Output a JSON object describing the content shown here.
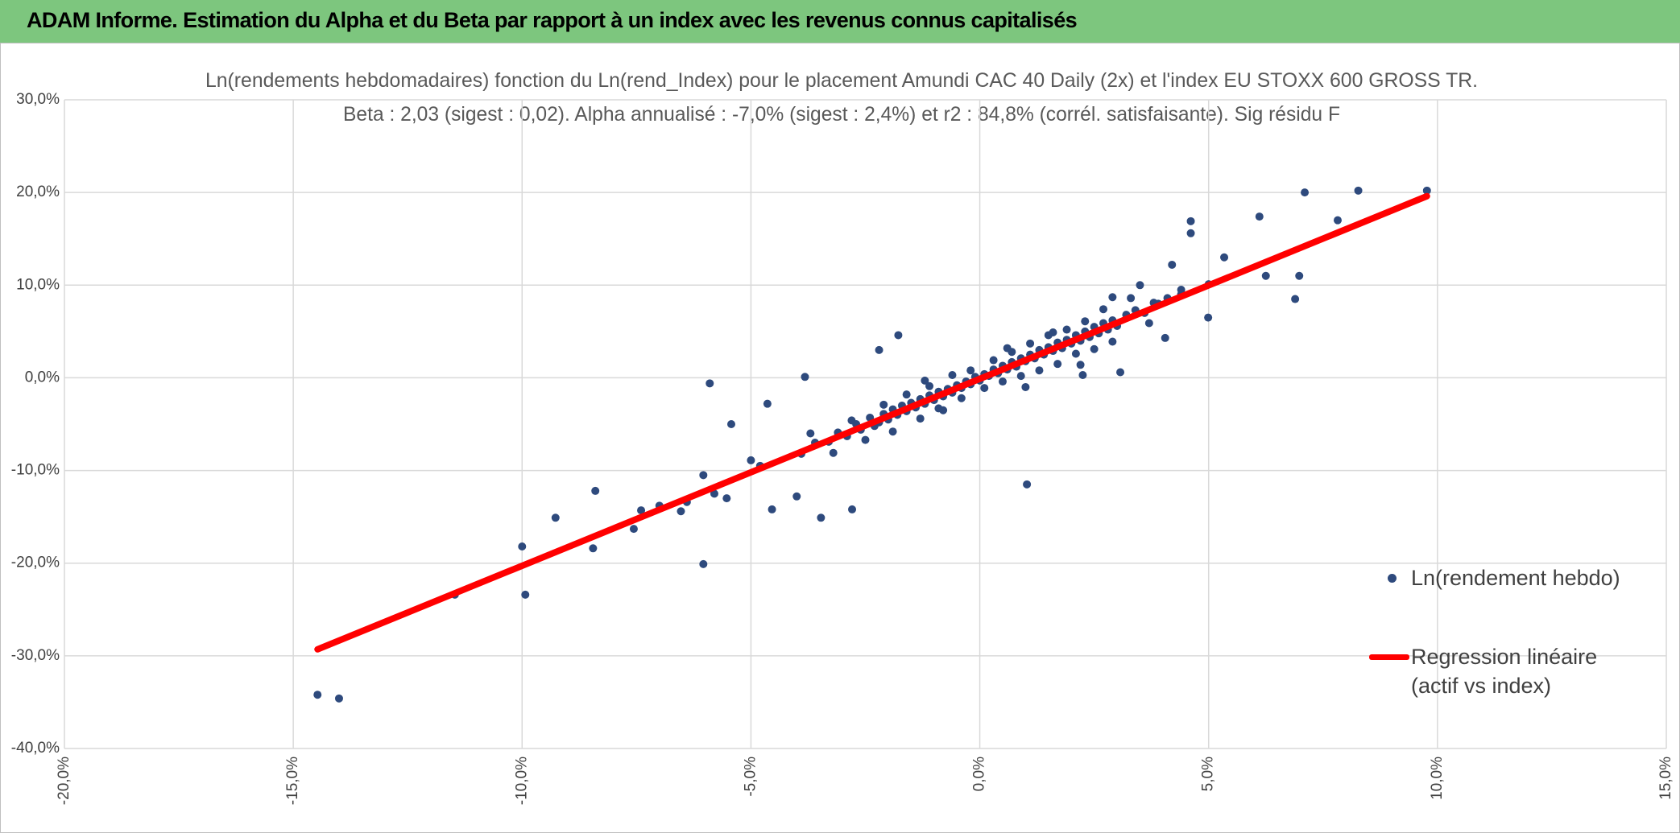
{
  "header": {
    "title": "ADAM Informe. Estimation du Alpha et du Beta par rapport à un index avec les revenus connus capitalisés"
  },
  "chart_data": {
    "type": "scatter",
    "title": "Ln(rendements hebdomadaires) fonction du Ln(rend_Index) pour le placement Amundi CAC 40 Daily (2x)  et l'index EU STOXX 600 GROSS TR.",
    "subtitle": "Beta : 2,03 (sigest : 0,02).  Alpha annualisé : -7,0% (sigest : 2,4%) et r2 : 84,8% (corrél. satisfaisante). Sig résidu F",
    "xlim": [
      -20,
      15
    ],
    "ylim": [
      -40,
      30
    ],
    "xticks": [
      {
        "value": -20,
        "label": "-20,0%"
      },
      {
        "value": -15,
        "label": "-15,0%"
      },
      {
        "value": -10,
        "label": "-10,0%"
      },
      {
        "value": -5,
        "label": "-5,0%"
      },
      {
        "value": 0,
        "label": "0,0%"
      },
      {
        "value": 5,
        "label": "5,0%"
      },
      {
        "value": 10,
        "label": "10,0%"
      },
      {
        "value": 15,
        "label": "15,0%"
      }
    ],
    "yticks": [
      {
        "value": -40,
        "label": "-40,0%"
      },
      {
        "value": -30,
        "label": "-30,0%"
      },
      {
        "value": -20,
        "label": "-20,0%"
      },
      {
        "value": -10,
        "label": "-10,0%"
      },
      {
        "value": 0,
        "label": "0,0%"
      },
      {
        "value": 10,
        "label": "10,0%"
      },
      {
        "value": 20,
        "label": "20,0%"
      },
      {
        "value": 30,
        "label": "30,0%"
      }
    ],
    "grid": true,
    "legend": "right",
    "series": [
      {
        "name": "Ln(rendement hebdo)",
        "type": "scatter",
        "color": "#2e4a7d",
        "x": [
          -14.47,
          -14.0,
          -11.47,
          -10.0,
          -9.93,
          -9.27,
          -8.45,
          -8.4,
          -7.56,
          -7.4,
          -6.53,
          -6.04,
          -6.04,
          -5.9,
          -5.43,
          -5.53,
          -5.0,
          -4.64,
          -4.54,
          -4.0,
          -3.82,
          -3.47,
          -2.79,
          -1.78,
          -2.2,
          1.03,
          2.25,
          3.07,
          7.1,
          8.27,
          9.77,
          7.82,
          6.11,
          4.61,
          4.61,
          6.89,
          6.98,
          6.25,
          5.34,
          4.99,
          4.05,
          3.5,
          4.2,
          3.9,
          5.0,
          2.9,
          4.4,
          -4.8,
          -6.4,
          -5.8,
          -7.0,
          -3.9,
          -3.6,
          -3.3,
          -3.1,
          -2.9,
          -2.7,
          -2.6,
          -2.4,
          -2.3,
          -2.2,
          -2.1,
          -2.0,
          -1.9,
          -1.8,
          -1.7,
          -1.6,
          -1.5,
          -1.4,
          -1.3,
          -1.2,
          -1.1,
          -1.0,
          -0.9,
          -0.8,
          -0.7,
          -0.6,
          -0.5,
          -0.4,
          -0.3,
          -0.2,
          -0.1,
          0.0,
          0.1,
          0.2,
          0.3,
          0.4,
          0.5,
          0.6,
          0.7,
          0.8,
          0.9,
          1.0,
          1.1,
          1.2,
          1.3,
          1.4,
          1.5,
          1.6,
          1.7,
          1.8,
          1.9,
          2.0,
          2.1,
          2.2,
          2.3,
          2.4,
          2.5,
          2.6,
          2.7,
          2.8,
          2.9,
          3.0,
          3.2,
          3.4,
          3.6,
          3.8,
          4.1,
          4.4,
          -3.7,
          -3.2,
          -2.8,
          -2.5,
          -2.1,
          -1.9,
          -1.6,
          -1.3,
          -1.1,
          -0.9,
          -0.6,
          -0.4,
          -0.2,
          0.1,
          0.3,
          0.5,
          0.7,
          0.9,
          1.1,
          1.3,
          1.5,
          1.7,
          1.9,
          2.1,
          2.3,
          2.5,
          2.7,
          2.9,
          3.3,
          3.7,
          -1.2,
          -0.8,
          0.6,
          1.0,
          1.6,
          2.2
        ],
        "values": [
          -34.2,
          -34.6,
          -23.4,
          -18.2,
          -23.4,
          -15.1,
          -18.4,
          -12.2,
          -16.3,
          -14.3,
          -14.4,
          -10.5,
          -20.1,
          -0.6,
          -5.0,
          -13.0,
          -8.9,
          -2.8,
          -14.2,
          -12.8,
          0.1,
          -15.1,
          -14.2,
          4.6,
          3.0,
          -11.5,
          0.3,
          0.6,
          20.0,
          20.2,
          20.2,
          17.0,
          17.4,
          16.9,
          15.6,
          8.5,
          11.0,
          11.0,
          13.0,
          6.5,
          4.3,
          10.0,
          12.2,
          8.0,
          10.1,
          8.7,
          9.5,
          -9.5,
          -13.4,
          -12.5,
          -13.8,
          -8.2,
          -7.0,
          -6.9,
          -5.9,
          -6.3,
          -5.0,
          -5.6,
          -4.3,
          -5.2,
          -4.8,
          -3.9,
          -4.5,
          -3.4,
          -4.0,
          -3.0,
          -3.6,
          -2.7,
          -3.2,
          -2.3,
          -2.8,
          -1.9,
          -2.4,
          -1.5,
          -2.0,
          -1.2,
          -1.6,
          -0.8,
          -1.1,
          -0.4,
          -0.7,
          0.1,
          -0.3,
          0.4,
          0.2,
          0.9,
          0.5,
          1.3,
          0.9,
          1.7,
          1.2,
          2.1,
          1.8,
          2.5,
          2.1,
          3.0,
          2.5,
          3.3,
          2.9,
          3.8,
          3.2,
          4.1,
          3.7,
          4.6,
          4.0,
          5.0,
          4.4,
          5.5,
          4.8,
          5.9,
          5.2,
          6.2,
          5.6,
          6.8,
          7.3,
          7.0,
          8.1,
          8.6,
          9.0,
          -6.0,
          -8.1,
          -4.6,
          -6.7,
          -2.9,
          -5.8,
          -1.8,
          -4.4,
          -0.9,
          -3.3,
          0.3,
          -2.2,
          0.8,
          -1.1,
          1.9,
          -0.4,
          2.8,
          0.2,
          3.7,
          0.8,
          4.6,
          1.5,
          5.2,
          2.6,
          6.1,
          3.1,
          7.4,
          3.9,
          8.6,
          5.9,
          -0.3,
          -3.5,
          3.2,
          -1.0,
          4.9,
          1.4
        ]
      },
      {
        "name": "Regression linéaire (actif vs index)",
        "type": "line",
        "color": "#ff0000",
        "x": [
          -14.47,
          9.77
        ],
        "values": [
          -29.3,
          19.6
        ]
      }
    ]
  }
}
